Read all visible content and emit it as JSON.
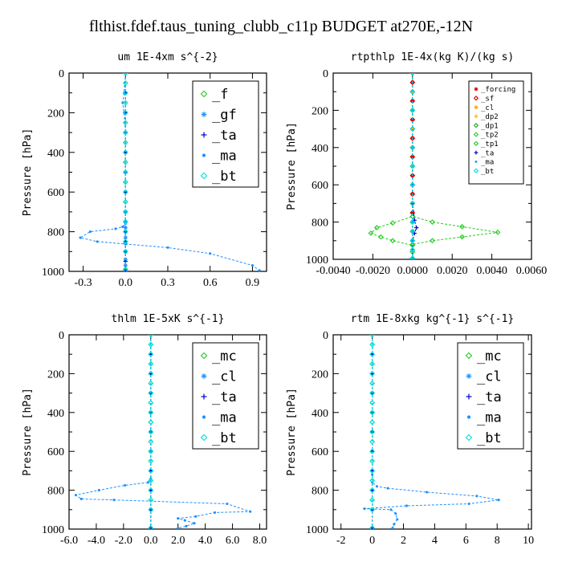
{
  "title": "flthist.fdef.taus_tuning_clubb_c11p  BUDGET at270E,-12N",
  "chart_data": [
    {
      "type": "line",
      "title": "um   1E-4xm s^{-2}",
      "xlabel": "",
      "ylabel": "Pressure [hPa]",
      "xlim": [
        -0.4,
        1.0
      ],
      "ylim": [
        1000,
        0
      ],
      "xticks": [
        -0.3,
        0.0,
        0.3,
        0.6,
        0.9
      ],
      "xtick_labels": [
        "-0.3",
        "0.0",
        "0.3",
        "0.6",
        "0.9"
      ],
      "yticks": [
        0,
        200,
        400,
        600,
        800,
        1000
      ],
      "legend_position": "top-right",
      "legend_size": "large",
      "series": [
        {
          "name": "_f",
          "color": "#22cc22",
          "marker": "diamond",
          "x": [
            0,
            0,
            0,
            0,
            0,
            0,
            0,
            0,
            0,
            0,
            0,
            0,
            0,
            0,
            0,
            0,
            0,
            0,
            0,
            0
          ],
          "y": [
            0,
            50,
            100,
            150,
            200,
            250,
            300,
            350,
            400,
            450,
            500,
            550,
            600,
            650,
            700,
            750,
            800,
            850,
            900,
            990
          ]
        },
        {
          "name": "_gf",
          "color": "#1e90ff",
          "marker": "star",
          "x": [
            0,
            0,
            0,
            0,
            0,
            0,
            0,
            0,
            0,
            0,
            0,
            0,
            0,
            0,
            0,
            0,
            0
          ],
          "y": [
            0,
            100,
            200,
            300,
            400,
            500,
            600,
            700,
            750,
            780,
            800,
            830,
            860,
            900,
            940,
            970,
            995
          ]
        },
        {
          "name": "_ta",
          "color": "#0000cc",
          "marker": "plus",
          "x": [
            0,
            0,
            0,
            0,
            0,
            0,
            0,
            0,
            0,
            0,
            0,
            0,
            0
          ],
          "y": [
            0,
            100,
            200,
            300,
            400,
            500,
            600,
            700,
            800,
            850,
            900,
            950,
            995
          ]
        },
        {
          "name": "_ma",
          "color": "#1e90ff",
          "marker": "dot",
          "x": [
            0,
            -0.01,
            -0.02,
            -0.01,
            0,
            0,
            0,
            0,
            -0.02,
            -0.07,
            -0.25,
            -0.32,
            -0.2,
            0.3,
            0.6,
            0.9,
            0.95
          ],
          "y": [
            0,
            100,
            150,
            200,
            300,
            500,
            700,
            760,
            775,
            785,
            800,
            830,
            850,
            880,
            910,
            970,
            995
          ]
        },
        {
          "name": "_bt",
          "color": "#00e0e0",
          "marker": "diamond",
          "x": [
            0,
            0,
            0,
            0,
            0,
            0,
            0,
            0,
            0,
            0,
            0,
            0,
            0,
            0,
            0,
            0,
            0,
            0,
            0,
            0
          ],
          "y": [
            0,
            50,
            100,
            150,
            200,
            250,
            300,
            350,
            400,
            450,
            500,
            550,
            600,
            650,
            700,
            750,
            800,
            850,
            900,
            995
          ]
        }
      ]
    },
    {
      "type": "line",
      "title": "rtpthlp  1E-4x(kg K)/(kg s)",
      "xlabel": "",
      "ylabel": "Pressure [hPa]",
      "xlim": [
        -0.004,
        0.006
      ],
      "ylim": [
        1000,
        0
      ],
      "xticks": [
        -0.004,
        -0.002,
        0.0,
        0.002,
        0.004,
        0.006
      ],
      "xtick_labels": [
        "-0.0040",
        "-0.0020",
        "0.0000",
        "0.0020",
        "0.0040",
        "0.0060"
      ],
      "yticks": [
        0,
        200,
        400,
        600,
        800,
        1000
      ],
      "legend_position": "top-right",
      "legend_size": "small",
      "series": [
        {
          "name": "_forcing",
          "color": "#dd0000",
          "marker": "star",
          "x": [
            0,
            0,
            0,
            0,
            0,
            0,
            0,
            0,
            0,
            0,
            0,
            0,
            0,
            0,
            0,
            0,
            0,
            0,
            0,
            0
          ],
          "y": [
            0,
            50,
            100,
            150,
            200,
            250,
            300,
            350,
            400,
            450,
            500,
            550,
            600,
            650,
            700,
            750,
            800,
            850,
            900,
            995
          ]
        },
        {
          "name": "_sf",
          "color": "#dd0000",
          "marker": "diamond",
          "x": [
            0,
            0,
            0,
            0,
            0,
            0,
            0,
            0,
            0,
            0,
            0,
            0,
            0,
            0,
            0,
            0,
            0,
            0,
            0,
            0
          ],
          "y": [
            0,
            50,
            100,
            150,
            200,
            250,
            300,
            350,
            400,
            450,
            500,
            550,
            600,
            650,
            700,
            750,
            800,
            850,
            900,
            995
          ]
        },
        {
          "name": "_cl",
          "color": "#ffaa00",
          "marker": "star",
          "x": [
            0,
            0,
            0,
            0,
            0,
            0,
            0,
            0,
            0,
            0,
            0,
            0,
            0
          ],
          "y": [
            0,
            100,
            200,
            300,
            400,
            500,
            600,
            700,
            800,
            850,
            900,
            950,
            995
          ]
        },
        {
          "name": "_dp2",
          "color": "#ffaa00",
          "marker": "plus",
          "x": [
            0,
            0,
            0,
            0,
            0,
            0,
            0,
            0,
            0,
            0,
            0,
            0,
            0
          ],
          "y": [
            0,
            100,
            200,
            300,
            400,
            500,
            600,
            700,
            800,
            850,
            900,
            950,
            995
          ]
        },
        {
          "name": "_dp1",
          "color": "#22aa22",
          "marker": "diamond",
          "x": [
            0,
            0,
            0,
            0,
            0,
            0,
            0,
            0,
            0,
            0,
            0,
            0,
            0
          ],
          "y": [
            0,
            100,
            200,
            300,
            400,
            500,
            600,
            700,
            800,
            850,
            900,
            950,
            995
          ]
        },
        {
          "name": "_tp2",
          "color": "#22cc22",
          "marker": "diamond",
          "x": [
            0,
            0,
            0,
            0.001,
            0.0025,
            0.0043,
            0.0025,
            0.001,
            0,
            0,
            0
          ],
          "y": [
            0,
            700,
            770,
            800,
            825,
            855,
            880,
            900,
            920,
            960,
            995
          ]
        },
        {
          "name": "_tp1",
          "color": "#22cc22",
          "marker": "diamond",
          "x": [
            0,
            0,
            0,
            -0.001,
            -0.0018,
            -0.0021,
            -0.0016,
            -0.001,
            0,
            0,
            0
          ],
          "y": [
            0,
            700,
            770,
            805,
            830,
            860,
            880,
            900,
            925,
            960,
            995
          ]
        },
        {
          "name": "_ta",
          "color": "#0000cc",
          "marker": "plus",
          "x": [
            0,
            0,
            0.0001,
            0.0002,
            0.0001,
            0,
            0
          ],
          "y": [
            0,
            700,
            790,
            830,
            860,
            900,
            995
          ]
        },
        {
          "name": "_ma",
          "color": "#1e90ff",
          "marker": "dot",
          "x": [
            0,
            0,
            0,
            0,
            0,
            0,
            0,
            0
          ],
          "y": [
            0,
            200,
            400,
            600,
            800,
            850,
            900,
            995
          ]
        },
        {
          "name": "_bt",
          "color": "#00e0e0",
          "marker": "diamond",
          "x": [
            0,
            0,
            0,
            0,
            0,
            0,
            0,
            0,
            0,
            0,
            0,
            0,
            0
          ],
          "y": [
            0,
            100,
            200,
            300,
            400,
            500,
            600,
            700,
            800,
            850,
            900,
            950,
            995
          ]
        }
      ]
    },
    {
      "type": "line",
      "title": "thlm  1E-5xK s^{-1}",
      "xlabel": "",
      "ylabel": "Pressure [hPa]",
      "xlim": [
        -6.0,
        8.5
      ],
      "ylim": [
        1000,
        0
      ],
      "xticks": [
        -6.0,
        -4.0,
        -2.0,
        0.0,
        2.0,
        4.0,
        6.0,
        8.0
      ],
      "xtick_labels": [
        "-6.0",
        "-4.0",
        "-2.0",
        "0.0",
        "2.0",
        "4.0",
        "6.0",
        "8.0"
      ],
      "yticks": [
        0,
        200,
        400,
        600,
        800,
        1000
      ],
      "legend_position": "top-right",
      "legend_size": "large",
      "series": [
        {
          "name": "_mc",
          "color": "#22cc22",
          "marker": "diamond",
          "x": [
            0,
            0,
            0,
            0,
            0,
            0,
            0,
            0,
            0,
            0,
            0,
            0,
            0,
            0,
            0,
            0,
            0,
            0,
            0,
            0
          ],
          "y": [
            0,
            50,
            100,
            150,
            200,
            250,
            300,
            350,
            400,
            450,
            500,
            550,
            600,
            650,
            700,
            750,
            800,
            850,
            900,
            995
          ]
        },
        {
          "name": "_cl",
          "color": "#1e90ff",
          "marker": "star",
          "x": [
            0,
            0,
            0,
            0,
            0,
            0,
            0,
            0,
            0,
            0,
            0
          ],
          "y": [
            0,
            100,
            200,
            300,
            400,
            500,
            600,
            700,
            800,
            900,
            995
          ]
        },
        {
          "name": "_ta",
          "color": "#0000cc",
          "marker": "plus",
          "x": [
            0,
            0,
            0,
            0,
            0,
            0,
            0,
            0,
            0,
            0,
            0
          ],
          "y": [
            0,
            100,
            200,
            300,
            400,
            500,
            600,
            700,
            800,
            900,
            995
          ]
        },
        {
          "name": "_ma",
          "color": "#1e90ff",
          "marker": "dot",
          "x": [
            0,
            0,
            0,
            -0.2,
            -1.9,
            -3.8,
            -5.5,
            -5.1,
            -2.7,
            5.6,
            7.3,
            4.7,
            3.3,
            2.0,
            2.5,
            3.2,
            2.6,
            2.0
          ],
          "y": [
            0,
            600,
            740,
            760,
            775,
            800,
            825,
            845,
            850,
            870,
            910,
            915,
            935,
            945,
            955,
            970,
            985,
            995
          ]
        },
        {
          "name": "_bt",
          "color": "#00e0e0",
          "marker": "diamond",
          "x": [
            0,
            0,
            0,
            0,
            0,
            0,
            0,
            0,
            0,
            0,
            0,
            0,
            0,
            0,
            0,
            0,
            0,
            0,
            0,
            0
          ],
          "y": [
            0,
            50,
            100,
            150,
            200,
            250,
            300,
            350,
            400,
            450,
            500,
            550,
            600,
            650,
            700,
            750,
            800,
            850,
            900,
            995
          ]
        }
      ]
    },
    {
      "type": "line",
      "title": "rtm  1E-8xkg kg^{-1} s^{-1}",
      "xlabel": "",
      "ylabel": "Pressure [hPa]",
      "xlim": [
        -2.5,
        10.2
      ],
      "ylim": [
        1000,
        0
      ],
      "xticks": [
        -2,
        0,
        2,
        4,
        6,
        8,
        10
      ],
      "xtick_labels": [
        "-2",
        "0",
        "2",
        "4",
        "6",
        "8",
        "10"
      ],
      "yticks": [
        0,
        200,
        400,
        600,
        800,
        1000
      ],
      "legend_position": "top-right",
      "legend_size": "large",
      "series": [
        {
          "name": "_mc",
          "color": "#22cc22",
          "marker": "diamond",
          "x": [
            0,
            0,
            0,
            0,
            0,
            0,
            0,
            0,
            0,
            0,
            0,
            0,
            0,
            0,
            0,
            0,
            0,
            0,
            0,
            0
          ],
          "y": [
            0,
            50,
            100,
            150,
            200,
            250,
            300,
            350,
            400,
            450,
            500,
            550,
            600,
            650,
            700,
            750,
            800,
            850,
            900,
            995
          ]
        },
        {
          "name": "_cl",
          "color": "#1e90ff",
          "marker": "star",
          "x": [
            0,
            0,
            0,
            0,
            0,
            0,
            0,
            0,
            0,
            0,
            0
          ],
          "y": [
            0,
            100,
            200,
            300,
            400,
            500,
            600,
            700,
            800,
            900,
            995
          ]
        },
        {
          "name": "_ta",
          "color": "#0000cc",
          "marker": "plus",
          "x": [
            0,
            0,
            0,
            0,
            0,
            0,
            0,
            0,
            0,
            0,
            0
          ],
          "y": [
            0,
            100,
            200,
            300,
            400,
            500,
            600,
            700,
            800,
            900,
            995
          ]
        },
        {
          "name": "_ma",
          "color": "#1e90ff",
          "marker": "dot",
          "x": [
            0,
            0,
            0,
            0.3,
            1.0,
            3.5,
            6.7,
            8.1,
            6.2,
            2.2,
            -0.5,
            1.2,
            1.5,
            1.6,
            1.4,
            1.3
          ],
          "y": [
            0,
            720,
            760,
            780,
            790,
            810,
            830,
            850,
            870,
            880,
            895,
            900,
            920,
            950,
            975,
            995
          ]
        },
        {
          "name": "_bt",
          "color": "#00e0e0",
          "marker": "diamond",
          "x": [
            0,
            0,
            0,
            0,
            0,
            0,
            0,
            0,
            0,
            0,
            0,
            0,
            0,
            0,
            0,
            0,
            0,
            0,
            0,
            0
          ],
          "y": [
            0,
            50,
            100,
            150,
            200,
            250,
            300,
            350,
            400,
            450,
            500,
            550,
            600,
            650,
            700,
            750,
            800,
            850,
            900,
            995
          ]
        }
      ]
    }
  ]
}
